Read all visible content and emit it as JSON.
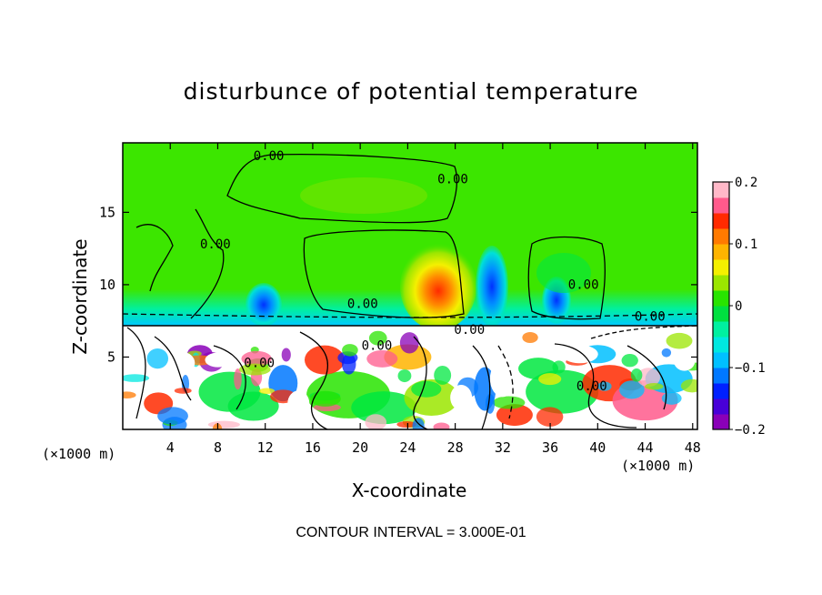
{
  "chart_data": {
    "type": "heatmap",
    "title": "disturbunce of potential temperature",
    "xlabel": "X-coordinate",
    "ylabel": "Z-coordinate",
    "x_unit": "(×1000 m)",
    "x_ticks": [
      4,
      8,
      12,
      16,
      20,
      24,
      28,
      32,
      36,
      40,
      44,
      48
    ],
    "y_ticks": [
      5,
      10,
      15
    ],
    "xlim": [
      0,
      48.4
    ],
    "ylim": [
      0,
      19.8
    ],
    "colorbar": {
      "ticks": [
        0.2,
        0.1,
        0,
        -0.1,
        -0.2
      ],
      "tick_labels": [
        "0.2",
        "0.1",
        "0",
        "−0.1",
        "−0.2"
      ],
      "range": [
        -0.2,
        0.2
      ]
    },
    "contour_labels": [
      {
        "text": "0.00",
        "x": 12.3,
        "z": 18.6
      },
      {
        "text": "0.00",
        "x": 27.8,
        "z": 17.0
      },
      {
        "text": "0.00",
        "x": 7.8,
        "z": 12.5
      },
      {
        "text": "0.00",
        "x": 20.2,
        "z": 8.4
      },
      {
        "text": "0.00",
        "x": 38.8,
        "z": 9.7
      },
      {
        "text": "0.00",
        "x": 44.4,
        "z": 7.5
      },
      {
        "text": "0.00",
        "x": 29.2,
        "z": 6.6
      },
      {
        "text": "0.00",
        "x": 21.4,
        "z": 5.5
      },
      {
        "text": "0.00",
        "x": 11.5,
        "z": 4.3
      },
      {
        "text": "0.00",
        "x": 39.5,
        "z": 2.7
      }
    ],
    "contour_interval_text": "CONTOUR INTERVAL = 3.000E-01",
    "regions": [
      {
        "name": "upper-layer",
        "z_range": [
          7.2,
          19.8
        ],
        "value": 0.0
      },
      {
        "name": "warm-anomaly",
        "x": 26.5,
        "z": 9.2,
        "value": 0.12
      },
      {
        "name": "cool-anomaly-1",
        "x": 30.8,
        "z": 9.5,
        "value": -0.08
      },
      {
        "name": "cool-anomaly-2",
        "x": 12.0,
        "z": 8.4,
        "value": -0.07
      },
      {
        "name": "cool-anomaly-3",
        "x": 37.5,
        "z": 9.0,
        "value": -0.06
      },
      {
        "name": "lower-turbulent-layer",
        "z_range": [
          0,
          7.0
        ],
        "value_range": [
          -0.2,
          0.2
        ]
      }
    ],
    "colors": {
      "level_colors": [
        "#8a00b8",
        "#4800d8",
        "#0020ff",
        "#0078ff",
        "#00c0ff",
        "#00e8e0",
        "#00f0a0",
        "#00e040",
        "#28e400",
        "#9be600",
        "#f4f000",
        "#ffb400",
        "#ff7a00",
        "#ff2a00",
        "#ff5a8c",
        "#ffb8c8"
      ]
    }
  }
}
